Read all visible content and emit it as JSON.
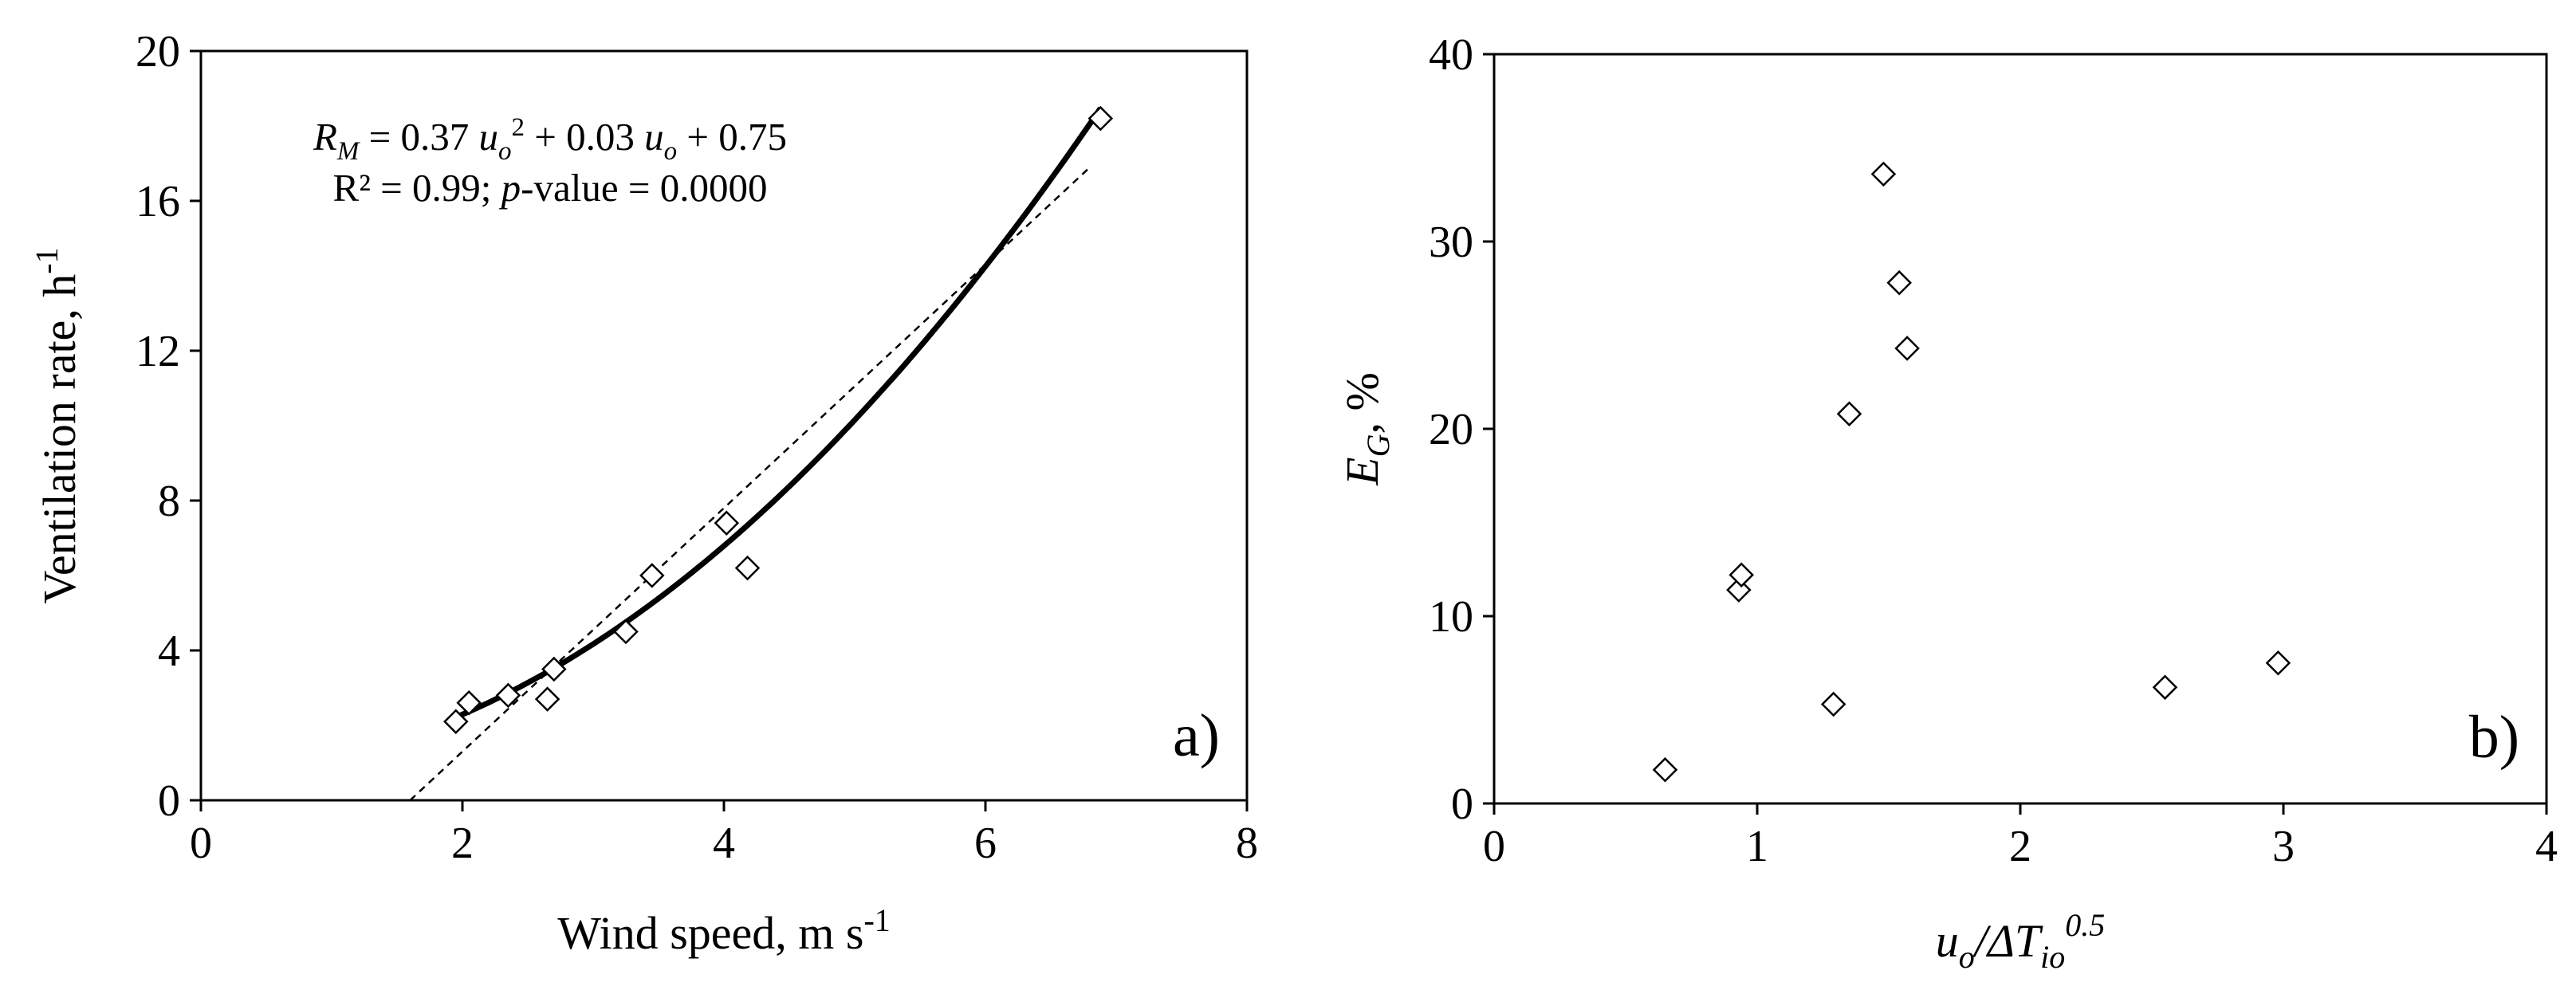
{
  "chart_data": [
    {
      "panel_label": "a)",
      "type": "scatter",
      "xlabel": {
        "main": "Wind speed, m s",
        "sup": "-1"
      },
      "ylabel": {
        "main": "Ventilation rate, h",
        "sup": "-1"
      },
      "xlim": [
        0,
        8
      ],
      "ylim": [
        0,
        20
      ],
      "xticks": [
        0,
        2,
        4,
        6,
        8
      ],
      "yticks": [
        0,
        4,
        8,
        12,
        16,
        20
      ],
      "equation_line1": {
        "R": "R",
        "M": "M",
        "a": " = 0.37 ",
        "u1": "u",
        "o1": "o",
        "sq": "2",
        "b": " + 0.03 ",
        "u2": "u",
        "o2": "o",
        "c": " + 0.75"
      },
      "equation_line2": {
        "a": "R² = 0.99; ",
        "p": "p",
        "b": "-value = 0.0000"
      },
      "points": [
        {
          "x": 1.95,
          "y": 2.1
        },
        {
          "x": 2.05,
          "y": 2.6
        },
        {
          "x": 2.35,
          "y": 2.8
        },
        {
          "x": 2.65,
          "y": 2.7
        },
        {
          "x": 2.7,
          "y": 3.5
        },
        {
          "x": 3.25,
          "y": 4.5
        },
        {
          "x": 3.45,
          "y": 6.0
        },
        {
          "x": 4.02,
          "y": 7.4
        },
        {
          "x": 4.18,
          "y": 6.2
        },
        {
          "x": 6.88,
          "y": 18.2
        }
      ],
      "fit_curve": {
        "coefficients": [
          0.37,
          0.03,
          0.75
        ],
        "x_range": [
          1.95,
          6.88
        ]
      },
      "linear_trend": {
        "x_range": [
          1.6,
          6.8
        ],
        "y_range": [
          0,
          16.9
        ]
      }
    },
    {
      "panel_label": "b)",
      "type": "scatter",
      "xlabel": {
        "u": "u",
        "o": "o",
        "mid": "/ΔT",
        "io": "io",
        "exp": "0.5"
      },
      "ylabel": {
        "E": "E",
        "G": "G",
        "rest": ", %"
      },
      "xlim": [
        0,
        4
      ],
      "ylim": [
        0,
        40
      ],
      "xticks": [
        0,
        1,
        2,
        3,
        4
      ],
      "yticks": [
        0,
        10,
        20,
        30,
        40
      ],
      "points": [
        {
          "x": 0.65,
          "y": 1.8
        },
        {
          "x": 0.93,
          "y": 11.4
        },
        {
          "x": 0.94,
          "y": 12.2
        },
        {
          "x": 1.29,
          "y": 5.3
        },
        {
          "x": 1.35,
          "y": 20.8
        },
        {
          "x": 1.48,
          "y": 33.6
        },
        {
          "x": 1.54,
          "y": 27.8
        },
        {
          "x": 1.57,
          "y": 24.3
        },
        {
          "x": 2.55,
          "y": 6.2
        },
        {
          "x": 2.98,
          "y": 7.5
        }
      ]
    }
  ]
}
